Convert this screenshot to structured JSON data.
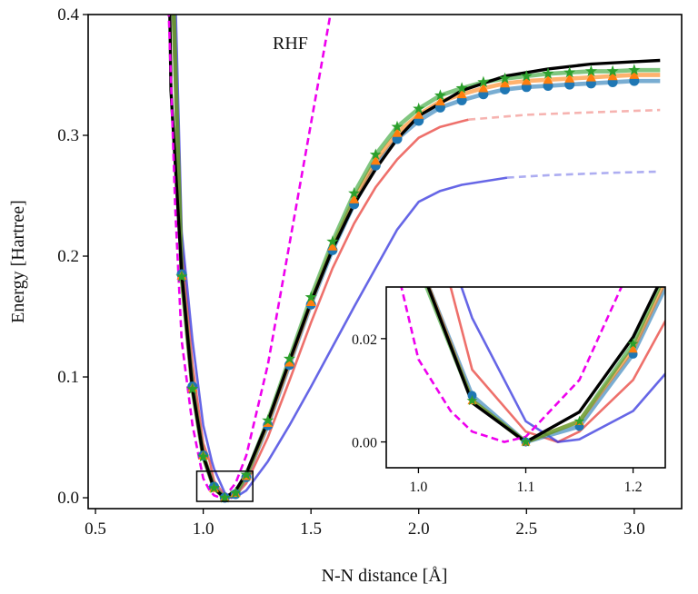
{
  "chart_data": {
    "type": "line",
    "xlabel": "N-N distance [Å]",
    "ylabel": "Energy [Hartree]",
    "annotation": "RHF",
    "grid": false,
    "legend": "none",
    "main": {
      "xlim": [
        0.466,
        3.22
      ],
      "ylim": [
        -0.009,
        0.4
      ],
      "xticks": [
        "0.5",
        "1.0",
        "1.5",
        "2.0",
        "2.5",
        "3.0"
      ],
      "xtick_values": [
        0.5,
        1.0,
        1.5,
        2.0,
        2.5,
        3.0
      ],
      "yticks": [
        "0.0",
        "0.1",
        "0.2",
        "0.3",
        "0.4"
      ],
      "ytick_values": [
        0.0,
        0.1,
        0.2,
        0.3,
        0.4
      ],
      "zoom_box": {
        "x": [
          0.97,
          1.23
        ],
        "y": [
          -0.003,
          0.022
        ]
      }
    },
    "inset": {
      "xlim": [
        0.97,
        1.23
      ],
      "ylim": [
        -0.005,
        0.03
      ],
      "xticks": [
        "1.0",
        "1.1",
        "1.2"
      ],
      "xtick_values": [
        1.0,
        1.1,
        1.2
      ],
      "yticks": [
        "0.00",
        "0.02"
      ],
      "ytick_values": [
        0.0,
        0.02
      ]
    },
    "series": [
      {
        "color": "#e8403a",
        "alpha": 0.75,
        "style": "solid",
        "marker": "none",
        "points": [
          [
            0.86,
            0.42
          ],
          [
            0.88,
            0.3
          ],
          [
            0.9,
            0.21
          ],
          [
            0.95,
            0.11
          ],
          [
            1.0,
            0.045
          ],
          [
            1.03,
            0.03
          ],
          [
            1.05,
            0.014
          ],
          [
            1.1,
            0.002
          ],
          [
            1.13,
            0.0
          ],
          [
            1.15,
            0.002
          ],
          [
            1.2,
            0.012
          ],
          [
            1.3,
            0.05
          ],
          [
            1.4,
            0.097
          ],
          [
            1.5,
            0.145
          ],
          [
            1.6,
            0.19
          ],
          [
            1.7,
            0.227
          ],
          [
            1.8,
            0.257
          ],
          [
            1.9,
            0.28
          ],
          [
            2.0,
            0.298
          ],
          [
            2.1,
            0.307
          ],
          [
            2.23,
            0.313
          ]
        ],
        "tail": [
          [
            2.23,
            0.313
          ],
          [
            2.5,
            0.317
          ],
          [
            2.8,
            0.319
          ],
          [
            3.12,
            0.321
          ]
        ]
      },
      {
        "color": "#3333dd",
        "alpha": 0.75,
        "style": "solid",
        "marker": "none",
        "points": [
          [
            0.87,
            0.42
          ],
          [
            0.9,
            0.22
          ],
          [
            0.95,
            0.13
          ],
          [
            1.0,
            0.06
          ],
          [
            1.04,
            0.03
          ],
          [
            1.05,
            0.024
          ],
          [
            1.1,
            0.004
          ],
          [
            1.13,
            0.0
          ],
          [
            1.15,
            0.0005
          ],
          [
            1.2,
            0.006
          ],
          [
            1.3,
            0.03
          ],
          [
            1.4,
            0.06
          ],
          [
            1.5,
            0.092
          ],
          [
            1.6,
            0.125
          ],
          [
            1.7,
            0.158
          ],
          [
            1.8,
            0.19
          ],
          [
            1.9,
            0.222
          ],
          [
            2.0,
            0.245
          ],
          [
            2.1,
            0.254
          ],
          [
            2.2,
            0.259
          ],
          [
            2.41,
            0.265
          ]
        ],
        "tail": [
          [
            2.41,
            0.265
          ],
          [
            2.6,
            0.267
          ],
          [
            2.9,
            0.269
          ],
          [
            3.12,
            0.27
          ]
        ]
      },
      {
        "color": "#1f77b4",
        "alpha": 0.6,
        "style": "solid",
        "marker": "circle",
        "points": [
          [
            0.86,
            0.42
          ],
          [
            0.9,
            0.185
          ],
          [
            0.95,
            0.092
          ],
          [
            1.0,
            0.035
          ],
          [
            1.05,
            0.009
          ],
          [
            1.1,
            0.0
          ],
          [
            1.15,
            0.003
          ],
          [
            1.2,
            0.017
          ],
          [
            1.3,
            0.06
          ],
          [
            1.4,
            0.11
          ],
          [
            1.5,
            0.16
          ],
          [
            1.6,
            0.205
          ],
          [
            1.7,
            0.243
          ],
          [
            1.8,
            0.275
          ],
          [
            1.9,
            0.297
          ],
          [
            2.0,
            0.312
          ],
          [
            2.1,
            0.323
          ],
          [
            2.2,
            0.329
          ],
          [
            2.3,
            0.334
          ],
          [
            2.4,
            0.338
          ],
          [
            2.5,
            0.34
          ],
          [
            2.6,
            0.341
          ],
          [
            2.7,
            0.342
          ],
          [
            2.8,
            0.343
          ],
          [
            2.9,
            0.344
          ],
          [
            3.0,
            0.345
          ],
          [
            3.12,
            0.345
          ]
        ]
      },
      {
        "color": "#ff7f0e",
        "alpha": 0.6,
        "style": "solid",
        "marker": "triangle",
        "points": [
          [
            0.86,
            0.42
          ],
          [
            0.9,
            0.184
          ],
          [
            0.95,
            0.091
          ],
          [
            1.0,
            0.035
          ],
          [
            1.05,
            0.008
          ],
          [
            1.1,
            0.0
          ],
          [
            1.15,
            0.004
          ],
          [
            1.2,
            0.018
          ],
          [
            1.3,
            0.062
          ],
          [
            1.4,
            0.112
          ],
          [
            1.5,
            0.162
          ],
          [
            1.6,
            0.208
          ],
          [
            1.7,
            0.247
          ],
          [
            1.8,
            0.279
          ],
          [
            1.9,
            0.302
          ],
          [
            2.0,
            0.317
          ],
          [
            2.1,
            0.328
          ],
          [
            2.2,
            0.334
          ],
          [
            2.3,
            0.339
          ],
          [
            2.4,
            0.343
          ],
          [
            2.5,
            0.345
          ],
          [
            2.6,
            0.346
          ],
          [
            2.7,
            0.347
          ],
          [
            2.8,
            0.348
          ],
          [
            2.9,
            0.349
          ],
          [
            3.0,
            0.35
          ],
          [
            3.12,
            0.35
          ]
        ]
      },
      {
        "color": "#2ca02c",
        "alpha": 0.6,
        "style": "solid",
        "marker": "star",
        "points": [
          [
            0.86,
            0.42
          ],
          [
            0.9,
            0.183
          ],
          [
            0.95,
            0.09
          ],
          [
            1.0,
            0.034
          ],
          [
            1.05,
            0.008
          ],
          [
            1.1,
            0.0
          ],
          [
            1.15,
            0.004
          ],
          [
            1.2,
            0.019
          ],
          [
            1.3,
            0.064
          ],
          [
            1.4,
            0.115
          ],
          [
            1.5,
            0.166
          ],
          [
            1.6,
            0.212
          ],
          [
            1.7,
            0.252
          ],
          [
            1.8,
            0.284
          ],
          [
            1.9,
            0.307
          ],
          [
            2.0,
            0.322
          ],
          [
            2.1,
            0.333
          ],
          [
            2.2,
            0.339
          ],
          [
            2.3,
            0.344
          ],
          [
            2.4,
            0.347
          ],
          [
            2.5,
            0.349
          ],
          [
            2.6,
            0.351
          ],
          [
            2.7,
            0.352
          ],
          [
            2.8,
            0.353
          ],
          [
            2.9,
            0.353
          ],
          [
            3.0,
            0.354
          ],
          [
            3.12,
            0.354
          ]
        ]
      },
      {
        "color": "#000000",
        "alpha": 1,
        "style": "solid",
        "marker": "none",
        "points": [
          [
            0.84,
            0.46
          ],
          [
            0.85,
            0.337
          ],
          [
            0.9,
            0.186
          ],
          [
            0.95,
            0.09
          ],
          [
            1.0,
            0.035
          ],
          [
            1.05,
            0.0076
          ],
          [
            1.1,
            0.0
          ],
          [
            1.15,
            0.0058
          ],
          [
            1.2,
            0.0203
          ],
          [
            1.3,
            0.063
          ],
          [
            1.4,
            0.113
          ],
          [
            1.5,
            0.162
          ],
          [
            1.6,
            0.206
          ],
          [
            1.7,
            0.243
          ],
          [
            1.8,
            0.272
          ],
          [
            1.9,
            0.297
          ],
          [
            2.0,
            0.316
          ],
          [
            2.2,
            0.337
          ],
          [
            2.4,
            0.349
          ],
          [
            2.6,
            0.355
          ],
          [
            2.8,
            0.359
          ],
          [
            3.0,
            0.361
          ],
          [
            3.12,
            0.362
          ]
        ]
      },
      {
        "color": "#ee00ee",
        "alpha": 1,
        "style": "dashed",
        "marker": "none",
        "points": [
          [
            0.83,
            0.45
          ],
          [
            0.84,
            0.4
          ],
          [
            0.87,
            0.24
          ],
          [
            0.9,
            0.13
          ],
          [
            0.95,
            0.06
          ],
          [
            1.0,
            0.016
          ],
          [
            1.03,
            0.006
          ],
          [
            1.05,
            0.002
          ],
          [
            1.08,
            0.0
          ],
          [
            1.1,
            0.001
          ],
          [
            1.15,
            0.012
          ],
          [
            1.2,
            0.035
          ],
          [
            1.3,
            0.11
          ],
          [
            1.4,
            0.21
          ],
          [
            1.5,
            0.31
          ],
          [
            1.59,
            0.4
          ],
          [
            1.61,
            0.42
          ]
        ]
      }
    ],
    "marker_x": [
      0.9,
      0.95,
      1.0,
      1.05,
      1.1,
      1.15,
      1.2,
      1.3,
      1.4,
      1.5,
      1.6,
      1.7,
      1.8,
      1.9,
      2.0,
      2.1,
      2.2,
      2.3,
      2.4,
      2.5,
      2.6,
      2.7,
      2.8,
      2.9,
      3.0
    ]
  }
}
